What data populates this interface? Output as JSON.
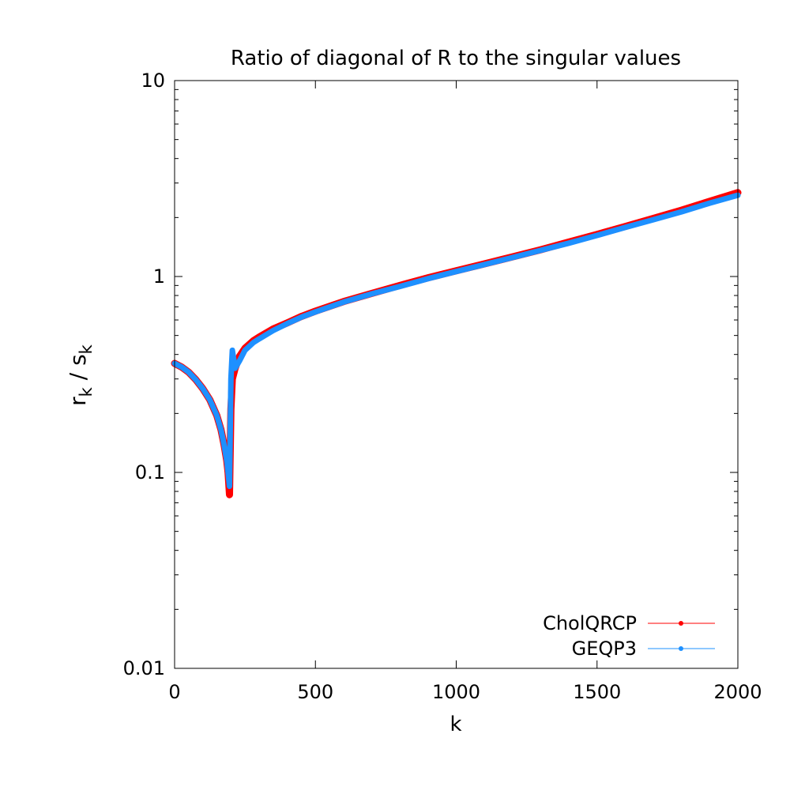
{
  "chart_data": {
    "type": "line",
    "title": "Ratio of diagonal of R to the singular values",
    "xlabel": "k",
    "ylabel": {
      "r": "r",
      "r_sub": "k",
      "sep": " / ",
      "s": "s",
      "s_sub": "k"
    },
    "xlim": [
      0,
      2000
    ],
    "ylim": [
      0.01,
      10
    ],
    "yscale": "log",
    "grid": false,
    "legend_position": "bottom-right",
    "x_ticks": [
      {
        "value": 0,
        "label": "0"
      },
      {
        "value": 500,
        "label": "500"
      },
      {
        "value": 1000,
        "label": "1000"
      },
      {
        "value": 1500,
        "label": "1500"
      },
      {
        "value": 2000,
        "label": "2000"
      }
    ],
    "y_ticks": [
      {
        "value": 0.01,
        "label": "0.01"
      },
      {
        "value": 0.1,
        "label": "0.1"
      },
      {
        "value": 1,
        "label": "1"
      },
      {
        "value": 10,
        "label": "10"
      }
    ],
    "series": [
      {
        "name": "CholQRCP",
        "color": "#ff0000",
        "points": [
          [
            0,
            0.36
          ],
          [
            25,
            0.345
          ],
          [
            50,
            0.325
          ],
          [
            75,
            0.298
          ],
          [
            100,
            0.268
          ],
          [
            125,
            0.235
          ],
          [
            150,
            0.195
          ],
          [
            165,
            0.165
          ],
          [
            175,
            0.14
          ],
          [
            185,
            0.115
          ],
          [
            190,
            0.1
          ],
          [
            195,
            0.077
          ],
          [
            200,
            0.21
          ],
          [
            205,
            0.3
          ],
          [
            215,
            0.34
          ],
          [
            230,
            0.39
          ],
          [
            250,
            0.43
          ],
          [
            280,
            0.47
          ],
          [
            300,
            0.49
          ],
          [
            350,
            0.54
          ],
          [
            400,
            0.58
          ],
          [
            450,
            0.625
          ],
          [
            500,
            0.665
          ],
          [
            600,
            0.745
          ],
          [
            700,
            0.82
          ],
          [
            800,
            0.9
          ],
          [
            900,
            0.985
          ],
          [
            1000,
            1.07
          ],
          [
            1100,
            1.16
          ],
          [
            1200,
            1.26
          ],
          [
            1300,
            1.37
          ],
          [
            1400,
            1.5
          ],
          [
            1500,
            1.64
          ],
          [
            1600,
            1.8
          ],
          [
            1700,
            1.98
          ],
          [
            1800,
            2.18
          ],
          [
            1900,
            2.42
          ],
          [
            2000,
            2.68
          ]
        ]
      },
      {
        "name": "GEQP3",
        "color": "#1e90ff",
        "points": [
          [
            0,
            0.36
          ],
          [
            25,
            0.345
          ],
          [
            50,
            0.325
          ],
          [
            75,
            0.298
          ],
          [
            100,
            0.268
          ],
          [
            125,
            0.235
          ],
          [
            150,
            0.195
          ],
          [
            165,
            0.165
          ],
          [
            175,
            0.14
          ],
          [
            185,
            0.115
          ],
          [
            190,
            0.1
          ],
          [
            195,
            0.085
          ],
          [
            200,
            0.3
          ],
          [
            205,
            0.42
          ],
          [
            215,
            0.34
          ],
          [
            230,
            0.37
          ],
          [
            250,
            0.42
          ],
          [
            280,
            0.46
          ],
          [
            300,
            0.48
          ],
          [
            350,
            0.53
          ],
          [
            400,
            0.575
          ],
          [
            450,
            0.62
          ],
          [
            500,
            0.66
          ],
          [
            600,
            0.74
          ],
          [
            700,
            0.815
          ],
          [
            800,
            0.89
          ],
          [
            900,
            0.975
          ],
          [
            1000,
            1.06
          ],
          [
            1100,
            1.15
          ],
          [
            1200,
            1.25
          ],
          [
            1300,
            1.36
          ],
          [
            1400,
            1.48
          ],
          [
            1500,
            1.62
          ],
          [
            1600,
            1.78
          ],
          [
            1700,
            1.95
          ],
          [
            1800,
            2.14
          ],
          [
            1900,
            2.37
          ],
          [
            2000,
            2.6
          ]
        ]
      }
    ]
  }
}
